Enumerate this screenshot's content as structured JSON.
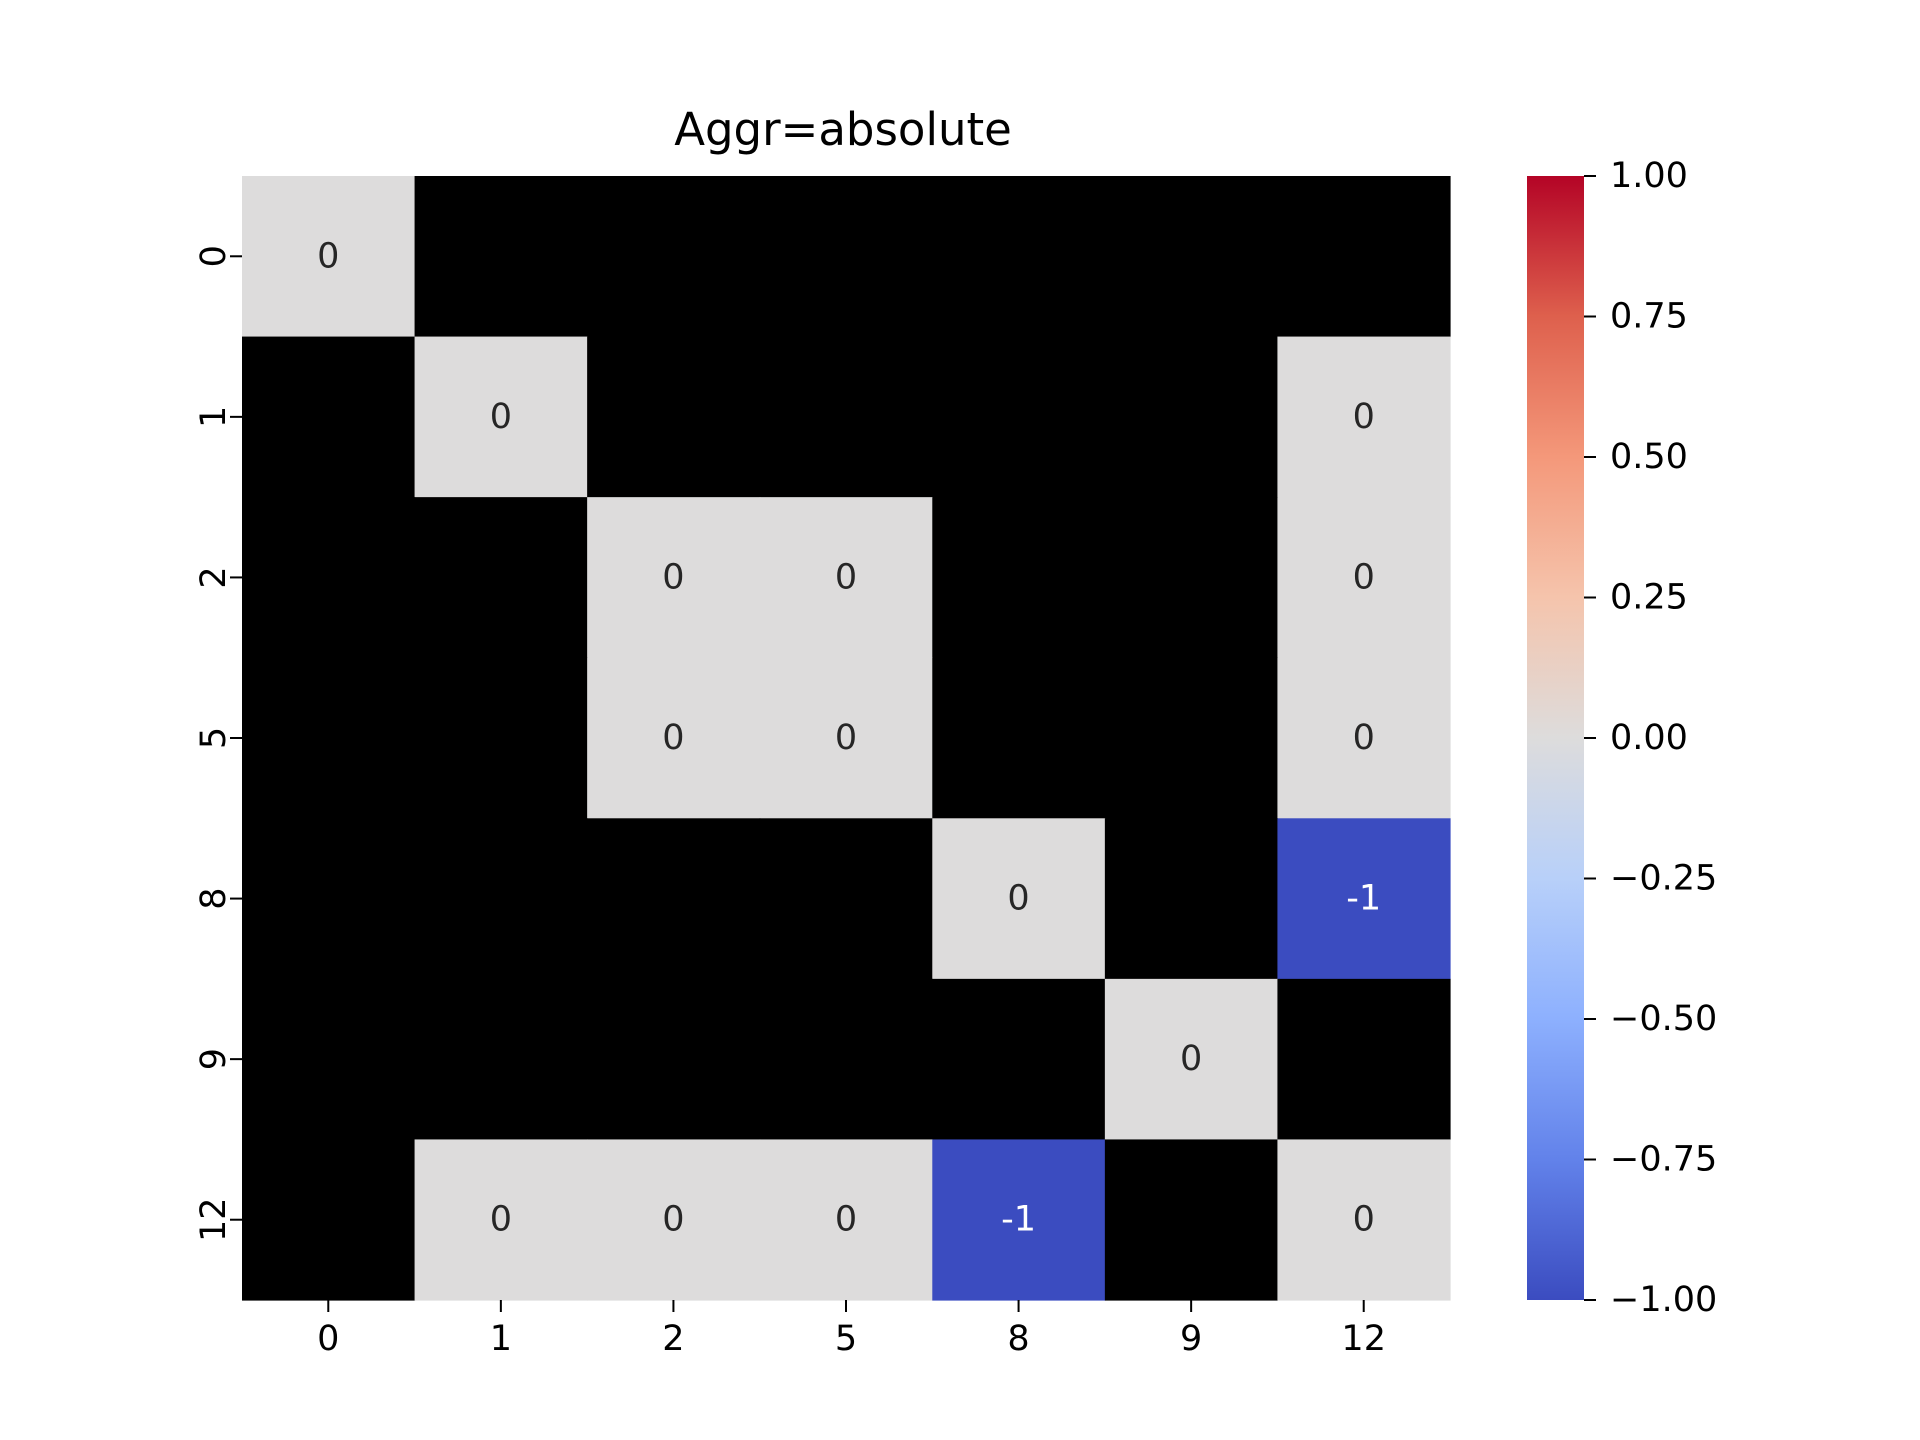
{
  "chart_data": {
    "type": "heatmap",
    "title": "Aggr=absolute",
    "xlabel": "",
    "ylabel": "",
    "x_categories": [
      "0",
      "1",
      "2",
      "5",
      "8",
      "9",
      "12"
    ],
    "y_categories": [
      "0",
      "1",
      "2",
      "5",
      "8",
      "9",
      "12"
    ],
    "values": [
      [
        0,
        null,
        null,
        null,
        null,
        null,
        null
      ],
      [
        null,
        0,
        null,
        null,
        null,
        null,
        0
      ],
      [
        null,
        null,
        0,
        0,
        null,
        null,
        0
      ],
      [
        null,
        null,
        0,
        0,
        null,
        null,
        0
      ],
      [
        null,
        null,
        null,
        null,
        0,
        null,
        -1
      ],
      [
        null,
        null,
        null,
        null,
        null,
        0,
        null
      ],
      [
        null,
        0,
        0,
        0,
        -1,
        null,
        0
      ]
    ],
    "cell_labels": [
      [
        "0",
        "",
        "",
        "",
        "",
        "",
        ""
      ],
      [
        "",
        "0",
        "",
        "",
        "",
        "",
        "0"
      ],
      [
        "",
        "",
        "0",
        "0",
        "",
        "",
        "0"
      ],
      [
        "",
        "",
        "0",
        "0",
        "",
        "",
        "0"
      ],
      [
        "",
        "",
        "",
        "",
        "0",
        "",
        "-1"
      ],
      [
        "",
        "",
        "",
        "",
        "",
        "0",
        ""
      ],
      [
        "",
        "0",
        "0",
        "0",
        "-1",
        "",
        "0"
      ]
    ],
    "missing_color": "#000000",
    "colormap": "coolwarm",
    "vmin": -1,
    "vmax": 1,
    "colorbar_ticks": [
      "1.00",
      "0.75",
      "0.50",
      "0.25",
      "0.00",
      "−0.25",
      "−0.50",
      "−0.75",
      "−1.00"
    ],
    "colorbar_tick_values": [
      1,
      0.75,
      0.5,
      0.25,
      0,
      -0.25,
      -0.5,
      -0.75,
      -1
    ],
    "colorbar_location": "right",
    "grid": false
  }
}
